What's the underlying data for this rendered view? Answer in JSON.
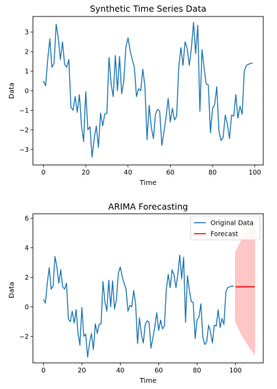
{
  "colors": {
    "original": "#1f77b4",
    "forecast": "#ff0000",
    "band": "#ffb3b3"
  },
  "chart_data": [
    {
      "type": "line",
      "title": "Synthetic Time Series Data",
      "xlabel": "Time",
      "ylabel": "Data",
      "xlim": [
        -5,
        104
      ],
      "ylim": [
        -3.8,
        3.8
      ],
      "xticks": [
        0,
        20,
        40,
        60,
        80,
        100
      ],
      "yticks": [
        -3,
        -2,
        -1,
        0,
        1,
        2,
        3
      ],
      "grid": false,
      "series": [
        {
          "x": [
            0,
            1,
            2,
            3,
            4,
            5,
            6,
            7,
            8,
            9,
            10,
            11,
            12,
            13,
            14,
            15,
            16,
            17,
            18,
            19,
            20,
            21,
            22,
            23,
            24,
            25,
            26,
            27,
            28,
            29,
            30,
            31,
            32,
            33,
            34,
            35,
            36,
            37,
            38,
            39,
            40,
            41,
            42,
            43,
            44,
            45,
            46,
            47,
            48,
            49,
            50,
            51,
            52,
            53,
            54,
            55,
            56,
            57,
            58,
            59,
            60,
            61,
            62,
            63,
            64,
            65,
            66,
            67,
            68,
            69,
            70,
            71,
            72,
            73,
            74,
            75,
            76,
            77,
            78,
            79,
            80,
            81,
            82,
            83,
            84,
            85,
            86,
            87,
            88,
            89,
            90,
            91,
            92,
            93,
            94,
            95,
            96,
            97,
            98,
            99
          ],
          "y": [
            0.5,
            0.25,
            1.6,
            2.65,
            1.2,
            1.4,
            3.4,
            2.7,
            1.6,
            2.5,
            1.35,
            1.2,
            1.6,
            -0.85,
            -1.0,
            -0.3,
            -1.1,
            -0.2,
            -1.8,
            -2.6,
            -0.05,
            -2.0,
            -1.85,
            -3.4,
            -2.45,
            -1.8,
            -2.9,
            -1.15,
            -1.8,
            -1.2,
            -1.15,
            1.7,
            0.35,
            -0.3,
            1.8,
            0.0,
            1.75,
            -0.15,
            0.5,
            2.25,
            2.7,
            2.05,
            1.6,
            1.2,
            -0.3,
            0.1,
            0.0,
            1.1,
            0.2,
            -2.5,
            -0.75,
            -1.85,
            -2.45,
            -1.2,
            -0.95,
            -1.05,
            -2.8,
            -2.1,
            -1.35,
            -0.4,
            -1.6,
            -0.9,
            -1.5,
            -1.3,
            1.2,
            2.2,
            1.3,
            2.5,
            2.15,
            1.3,
            2.2,
            3.5,
            1.9,
            3.35,
            -1.05,
            2.1,
            1.15,
            0.35,
            0.3,
            -2.15,
            -0.9,
            -0.7,
            0.2,
            -2.05,
            -2.55,
            -2.4,
            -1.25,
            -1.7,
            -2.45,
            -1.25,
            -1.3,
            -0.2,
            -1.4,
            -0.8,
            -1.2,
            1.0,
            1.3,
            1.35,
            1.4,
            1.4
          ]
        }
      ]
    },
    {
      "type": "line",
      "title": "ARIMA Forecasting",
      "xlabel": "Time",
      "ylabel": "Data",
      "xlim": [
        -5.5,
        114.5
      ],
      "ylim": [
        -3.8,
        6.3
      ],
      "xticks": [
        0,
        20,
        40,
        60,
        80,
        100
      ],
      "yticks": [
        -2,
        0,
        2,
        4,
        6
      ],
      "grid": false,
      "legend_position": "top-right",
      "series": [
        {
          "name": "Original Data",
          "ref": "series_0_of_chart_0"
        },
        {
          "name": "Forecast",
          "x": [
            100,
            110
          ],
          "y": [
            1.35,
            1.35
          ]
        }
      ],
      "confidence_band": {
        "x": [
          100,
          102,
          104,
          106,
          108,
          110
        ],
        "lower": [
          -0.95,
          -1.55,
          -2.05,
          -2.45,
          -2.85,
          -3.2
        ],
        "upper": [
          3.65,
          4.2,
          4.7,
          5.1,
          5.45,
          5.85
        ]
      }
    }
  ]
}
